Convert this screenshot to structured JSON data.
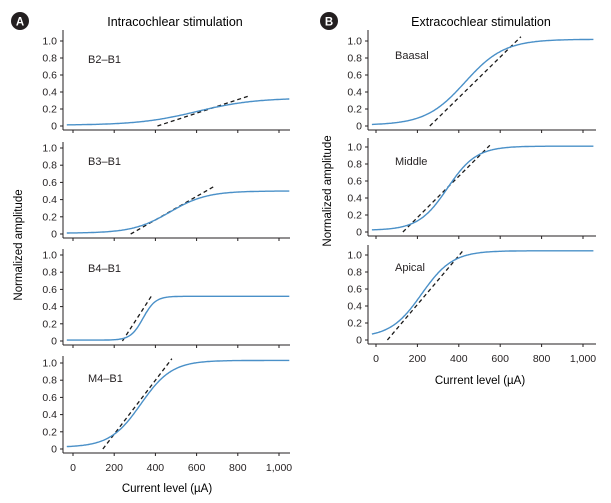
{
  "colors": {
    "curve": "#4a90c8",
    "tangent": "#1a1a1a",
    "axis": "#231f20",
    "badge": "#231f20",
    "badge_text": "#ffffff",
    "text": "#231f20"
  },
  "panels": [
    {
      "badge": "A",
      "title": "Intracochlear stimulation",
      "xlabel": "Current level (µA)",
      "ylabel": "Normalized amplitude",
      "xticks": [
        "0",
        "200",
        "400",
        "600",
        "800",
        "1,000"
      ],
      "yticks": [
        "0",
        "0.2",
        "0.4",
        "0.6",
        "0.8",
        "1.0"
      ]
    },
    {
      "badge": "B",
      "title": "Extracochlear stimulation",
      "xlabel": "Current level (µA)",
      "ylabel": "Normalized amplitude",
      "xticks": [
        "0",
        "200",
        "400",
        "600",
        "800",
        "1,000"
      ],
      "yticks": [
        "0",
        "0.2",
        "0.4",
        "0.6",
        "0.8",
        "1.0"
      ]
    }
  ],
  "chart_data": [
    {
      "type": "line",
      "title": "Intracochlear stimulation",
      "xlabel": "Current level (µA)",
      "ylabel": "Normalized amplitude",
      "xlim": [
        -30,
        1050
      ],
      "ylim": [
        0,
        1.1
      ],
      "series": [
        {
          "name": "B2–B1",
          "asymptote": 0.33,
          "midpoint": 600,
          "width": 140,
          "floor": 0.01,
          "tangent": [
            [
              410,
              0.0
            ],
            [
              850,
              0.35
            ]
          ]
        },
        {
          "name": "B3–B1",
          "asymptote": 0.5,
          "midpoint": 470,
          "width": 90,
          "floor": 0.01,
          "tangent": [
            [
              280,
              0.0
            ],
            [
              690,
              0.56
            ]
          ]
        },
        {
          "name": "B4–B1",
          "asymptote": 0.52,
          "midpoint": 340,
          "width": 30,
          "floor": 0.01,
          "tangent": [
            [
              240,
              0.0
            ],
            [
              380,
              0.52
            ]
          ]
        },
        {
          "name": "M4–B1",
          "asymptote": 1.03,
          "midpoint": 330,
          "width": 75,
          "floor": 0.02,
          "tangent": [
            [
              145,
              0.0
            ],
            [
              480,
              1.05
            ]
          ]
        }
      ]
    },
    {
      "type": "line",
      "title": "Extracochlear stimulation",
      "xlabel": "Current level (µA)",
      "ylabel": "Normalized amplitude",
      "xlim": [
        -20,
        1050
      ],
      "ylim": [
        0,
        1.1
      ],
      "series": [
        {
          "name": "Baasal",
          "asymptote": 1.02,
          "midpoint": 430,
          "width": 95,
          "floor": 0.01,
          "tangent": [
            [
              260,
              0.0
            ],
            [
              700,
              1.05
            ]
          ]
        },
        {
          "name": "Middle",
          "asymptote": 1.01,
          "midpoint": 345,
          "width": 70,
          "floor": 0.02,
          "tangent": [
            [
              130,
              0.0
            ],
            [
              550,
              1.02
            ]
          ]
        },
        {
          "name": "Apical",
          "asymptote": 1.05,
          "midpoint": 220,
          "width": 75,
          "floor": 0.03,
          "tangent": [
            [
              55,
              0.0
            ],
            [
              420,
              1.05
            ]
          ]
        }
      ]
    }
  ]
}
